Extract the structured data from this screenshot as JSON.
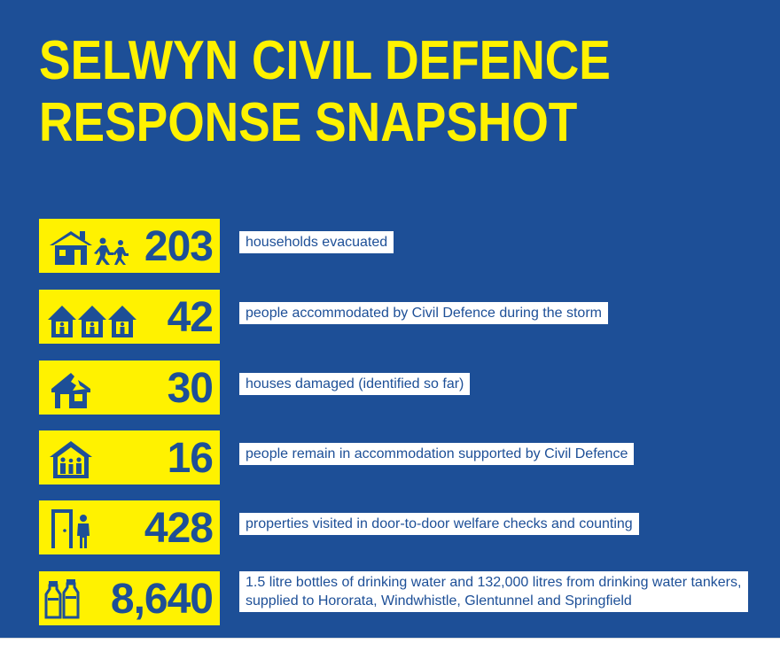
{
  "title": {
    "line1": "SELWYN CIVIL DEFENCE",
    "line2": "RESPONSE SNAPSHOT"
  },
  "colors": {
    "background": "#1d4f97",
    "accent": "#fff200",
    "text": "#1d4f97",
    "label_bg": "#ffffff"
  },
  "stats": [
    {
      "icon": "house-with-running-people-icon",
      "value": "203",
      "description": "households evacuated"
    },
    {
      "icon": "three-houses-with-people-icon",
      "value": "42",
      "description": "people accommodated by Civil Defence during the storm"
    },
    {
      "icon": "damaged-house-icon",
      "value": "30",
      "description": "houses damaged (identified so far)"
    },
    {
      "icon": "house-with-family-icon",
      "value": "16",
      "description": "people remain in accommodation supported by Civil Defence"
    },
    {
      "icon": "door-and-person-icon",
      "value": "428",
      "description": "properties visited in door-to-door welfare checks and counting"
    },
    {
      "icon": "water-bottles-icon",
      "value": "8,640",
      "description": "1.5 litre bottles of drinking water and 132,000 litres from drinking water tankers, supplied to Hororata, Windwhistle, Glentunnel and Springfield"
    }
  ]
}
